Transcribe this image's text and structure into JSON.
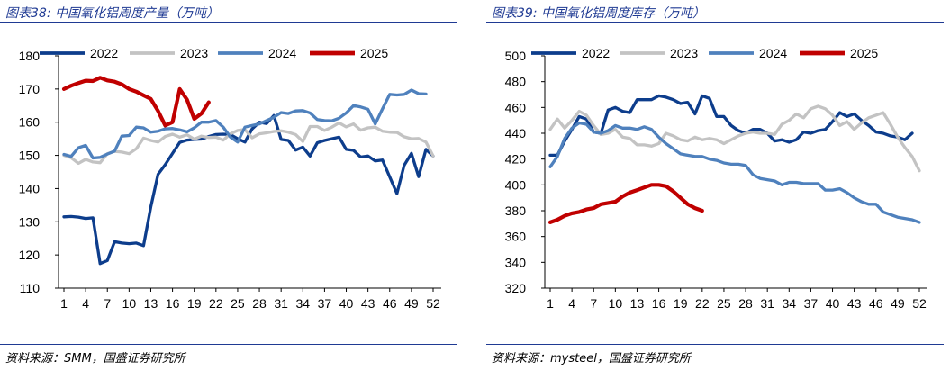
{
  "chart_data": [
    {
      "type": "line",
      "title": "图表38: 中国氧化铝周度产量（万吨）",
      "source": "资料来源：SMM，国盛证券研究所",
      "xlabel": "",
      "ylabel": "",
      "ylim": [
        110,
        180
      ],
      "yticks": [
        "110",
        "120",
        "130",
        "140",
        "150",
        "160",
        "170",
        "180"
      ],
      "xticks": [
        "1",
        "4",
        "7",
        "10",
        "13",
        "16",
        "19",
        "22",
        "25",
        "28",
        "31",
        "34",
        "37",
        "40",
        "43",
        "46",
        "49",
        "52"
      ],
      "legend_position": "top",
      "series": [
        {
          "name": "2022",
          "color": "#0d3d8c",
          "values": [
            131.5,
            131.6,
            131.4,
            131.0,
            131.2,
            117.4,
            118.3,
            124.0,
            123.6,
            123.4,
            123.6,
            122.8,
            134.5,
            144.3,
            147.2,
            150.6,
            153.9,
            154.6,
            154.8,
            154.9,
            155.7,
            156.3,
            156.4,
            156.3,
            155.0,
            154.0,
            158.0,
            160.0,
            159.6,
            162.0,
            154.8,
            154.5,
            151.6,
            152.5,
            149.8,
            153.8,
            154.5,
            155.0,
            155.5,
            151.8,
            151.5,
            149.5,
            149.8,
            148.3,
            148.6,
            143.5,
            138.5,
            147.0,
            150.6,
            143.6,
            151.8,
            149.8
          ]
        },
        {
          "name": "2023",
          "color": "#c3c3c3",
          "values": [
            150.0,
            149.3,
            147.6,
            148.8,
            148.0,
            147.8,
            150.5,
            151.2,
            151.0,
            150.5,
            152.0,
            155.2,
            154.5,
            154.0,
            155.7,
            156.4,
            155.5,
            156.2,
            154.9,
            155.8,
            155.4,
            155.5,
            154.6,
            156.5,
            157.5,
            157.8,
            155.3,
            156.5,
            156.8,
            157.2,
            157.4,
            157.0,
            156.3,
            154.2,
            158.7,
            158.7,
            157.5,
            158.5,
            159.8,
            158.6,
            159.5,
            157.6,
            158.3,
            158.5,
            157.3,
            157.0,
            156.9,
            155.6,
            155.0,
            155.1,
            154.0,
            149.8
          ]
        },
        {
          "name": "2024",
          "color": "#4f81bd",
          "values": [
            150.3,
            149.7,
            152.3,
            153.0,
            149.2,
            149.4,
            150.4,
            151.3,
            155.8,
            156.0,
            158.5,
            158.3,
            157.0,
            157.3,
            158.0,
            158.1,
            157.7,
            157.1,
            158.3,
            160.0,
            160.0,
            160.5,
            158.5,
            155.5,
            154.0,
            158.5,
            159.0,
            159.5,
            160.5,
            161.5,
            162.9,
            162.6,
            163.4,
            163.5,
            162.8,
            160.8,
            160.5,
            160.4,
            161.2,
            162.8,
            165.0,
            164.6,
            163.9,
            159.5,
            164.0,
            168.4,
            168.2,
            168.4,
            169.7,
            168.6,
            168.5,
            null
          ]
        },
        {
          "name": "2025",
          "color": "#c00000",
          "values": [
            170.0,
            171.0,
            171.8,
            172.5,
            172.4,
            173.4,
            172.6,
            172.2,
            171.4,
            170.0,
            169.2,
            168.1,
            167.0,
            163.4,
            159.0,
            160.0,
            170.0,
            166.8,
            161.0,
            162.6,
            166.0,
            null,
            null,
            null,
            null,
            null,
            null,
            null,
            null,
            null,
            null,
            null,
            null,
            null,
            null,
            null,
            null,
            null,
            null,
            null,
            null,
            null,
            null,
            null,
            null,
            null,
            null,
            null,
            null,
            null,
            null,
            null
          ]
        }
      ]
    },
    {
      "type": "line",
      "title": "图表39: 中国氧化铝周度库存（万吨）",
      "source": "资料来源：mysteel，国盛证券研究所",
      "xlabel": "",
      "ylabel": "",
      "ylim": [
        320,
        500
      ],
      "yticks": [
        "320",
        "340",
        "360",
        "380",
        "400",
        "420",
        "440",
        "460",
        "480",
        "500"
      ],
      "xticks": [
        "1",
        "4",
        "7",
        "10",
        "13",
        "16",
        "19",
        "22",
        "25",
        "28",
        "31",
        "34",
        "37",
        "40",
        "43",
        "46",
        "49",
        "52"
      ],
      "legend_position": "top",
      "series": [
        {
          "name": "2022",
          "color": "#0d3d8c",
          "values": [
            423,
            423,
            434,
            443,
            453,
            451,
            441,
            440,
            458,
            460,
            457,
            456,
            466,
            466,
            466,
            469,
            468,
            466,
            463,
            464,
            455,
            469,
            467,
            453,
            453,
            446,
            442,
            440,
            443,
            443,
            440,
            434,
            435,
            433,
            435,
            441,
            440,
            442,
            443,
            449,
            456,
            453,
            455,
            450,
            446,
            441,
            440,
            438,
            437,
            435,
            440,
            null
          ]
        },
        {
          "name": "2023",
          "color": "#c3c3c3",
          "values": [
            443,
            451,
            444,
            450,
            457,
            454,
            446,
            439,
            440,
            443,
            437,
            436,
            431,
            431,
            430,
            432,
            440,
            438,
            435,
            434,
            437,
            435,
            436,
            435,
            432,
            435,
            438,
            440,
            441,
            440,
            440,
            439,
            447,
            450,
            455,
            452,
            459,
            461,
            459,
            454,
            446,
            449,
            443,
            448,
            452,
            454,
            456,
            447,
            437,
            429,
            422,
            411
          ]
        },
        {
          "name": "2024",
          "color": "#4f81bd",
          "values": [
            414,
            422,
            436,
            444,
            448,
            447,
            441,
            440,
            442,
            446,
            444,
            444,
            443,
            445,
            443,
            437,
            432,
            428,
            424,
            423,
            422,
            422,
            420,
            419,
            417,
            416,
            416,
            415,
            408,
            405,
            404,
            403,
            400,
            402,
            402,
            401,
            401,
            401,
            396,
            396,
            397,
            394,
            390,
            387,
            385,
            385,
            379,
            377,
            375,
            374,
            373,
            371
          ]
        },
        {
          "name": "2025",
          "color": "#c00000",
          "values": [
            371,
            373,
            376,
            378,
            379,
            381,
            382,
            385,
            386,
            387,
            391,
            394,
            396,
            398,
            400,
            400,
            399,
            395,
            390,
            385,
            382,
            380,
            null,
            null,
            null,
            null,
            null,
            null,
            null,
            null,
            null,
            null,
            null,
            null,
            null,
            null,
            null,
            null,
            null,
            null,
            null,
            null,
            null,
            null,
            null,
            null,
            null,
            null,
            null,
            null,
            null,
            null
          ]
        }
      ]
    }
  ]
}
